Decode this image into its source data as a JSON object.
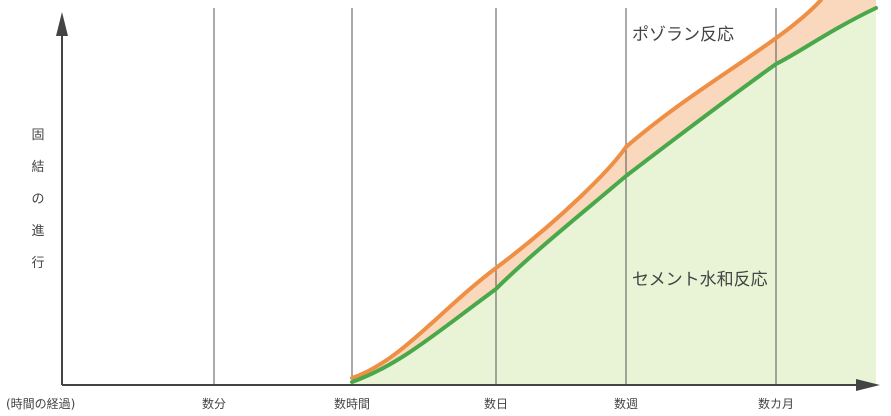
{
  "diagram": {
    "y_axis_label_chars": [
      "固",
      "結",
      "の",
      "進",
      "行"
    ],
    "x_axis_label": "(時間の経過)",
    "time_ticks": [
      "数分",
      "数時間",
      "数日",
      "数週",
      "数カ月"
    ],
    "series": [
      {
        "label": "ポゾラン反応",
        "line_color": "#ee8f45",
        "fill_color": "#fad8bd"
      },
      {
        "label": "セメント水和反応",
        "line_color": "#48a84a",
        "fill_color": "#e9f4d6"
      }
    ],
    "axis_color": "#444444",
    "gridline_color": "#555555"
  }
}
